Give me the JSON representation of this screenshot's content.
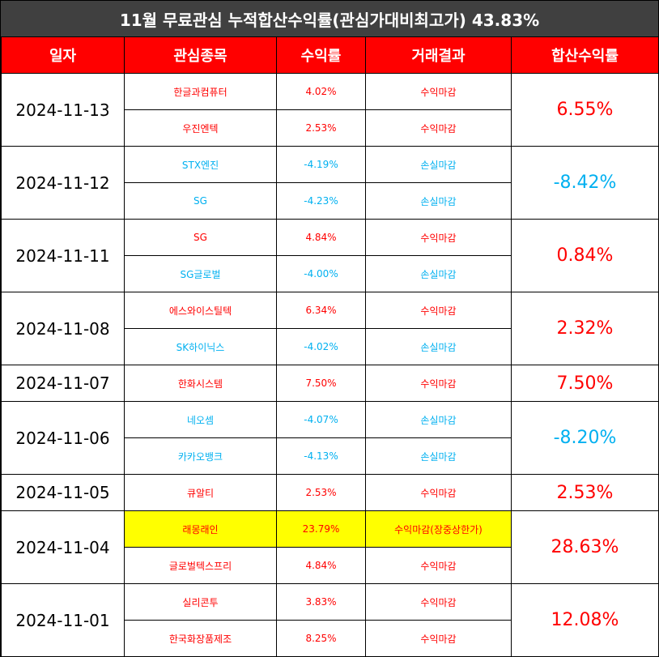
{
  "title": "11월 무료관심 누적합산수익률(관심가대비최고가) 43.83%",
  "headers": {
    "date": "일자",
    "stock": "관심종목",
    "return": "수익률",
    "result": "거래결과",
    "total": "합산수익률"
  },
  "colors": {
    "profit": "#ff0000",
    "loss": "#00b0f0",
    "header_bg": "#ff0000",
    "title_bg": "#404040",
    "highlight": "#ffff00"
  },
  "groups": [
    {
      "date": "2024-11-13",
      "total": "6.55%",
      "total_type": "profit",
      "rows": [
        {
          "stock": "한글과컴퓨터",
          "ret": "4.02%",
          "result": "수익마감",
          "type": "profit"
        },
        {
          "stock": "우진엔텍",
          "ret": "2.53%",
          "result": "수익마감",
          "type": "profit"
        }
      ]
    },
    {
      "date": "2024-11-12",
      "total": "-8.42%",
      "total_type": "loss",
      "rows": [
        {
          "stock": "STX엔진",
          "ret": "-4.19%",
          "result": "손실마감",
          "type": "loss"
        },
        {
          "stock": "SG",
          "ret": "-4.23%",
          "result": "손실마감",
          "type": "loss"
        }
      ]
    },
    {
      "date": "2024-11-11",
      "total": "0.84%",
      "total_type": "profit",
      "rows": [
        {
          "stock": "SG",
          "ret": "4.84%",
          "result": "수익마감",
          "type": "profit"
        },
        {
          "stock": "SG글로벌",
          "ret": "-4.00%",
          "result": "손실마감",
          "type": "loss"
        }
      ]
    },
    {
      "date": "2024-11-08",
      "total": "2.32%",
      "total_type": "profit",
      "rows": [
        {
          "stock": "에스와이스틸텍",
          "ret": "6.34%",
          "result": "수익마감",
          "type": "profit"
        },
        {
          "stock": "SK하이닉스",
          "ret": "-4.02%",
          "result": "손실마감",
          "type": "loss"
        }
      ]
    },
    {
      "date": "2024-11-07",
      "total": "7.50%",
      "total_type": "profit",
      "rows": [
        {
          "stock": "한화시스템",
          "ret": "7.50%",
          "result": "수익마감",
          "type": "profit"
        }
      ]
    },
    {
      "date": "2024-11-06",
      "total": "-8.20%",
      "total_type": "loss",
      "rows": [
        {
          "stock": "네오셈",
          "ret": "-4.07%",
          "result": "손실마감",
          "type": "loss"
        },
        {
          "stock": "카카오뱅크",
          "ret": "-4.13%",
          "result": "손실마감",
          "type": "loss"
        }
      ]
    },
    {
      "date": "2024-11-05",
      "total": "2.53%",
      "total_type": "profit",
      "rows": [
        {
          "stock": "큐알티",
          "ret": "2.53%",
          "result": "수익마감",
          "type": "profit"
        }
      ]
    },
    {
      "date": "2024-11-04",
      "total": "28.63%",
      "total_type": "profit",
      "rows": [
        {
          "stock": "래몽래인",
          "ret": "23.79%",
          "result": "수익마감(장중상한가)",
          "type": "profit",
          "highlight": true
        },
        {
          "stock": "글로벌텍스프리",
          "ret": "4.84%",
          "result": "수익마감",
          "type": "profit"
        }
      ]
    },
    {
      "date": "2024-11-01",
      "total": "12.08%",
      "total_type": "profit",
      "rows": [
        {
          "stock": "실리콘투",
          "ret": "3.83%",
          "result": "수익마감",
          "type": "profit"
        },
        {
          "stock": "한국화장품제조",
          "ret": "8.25%",
          "result": "수익마감",
          "type": "profit"
        }
      ]
    }
  ]
}
